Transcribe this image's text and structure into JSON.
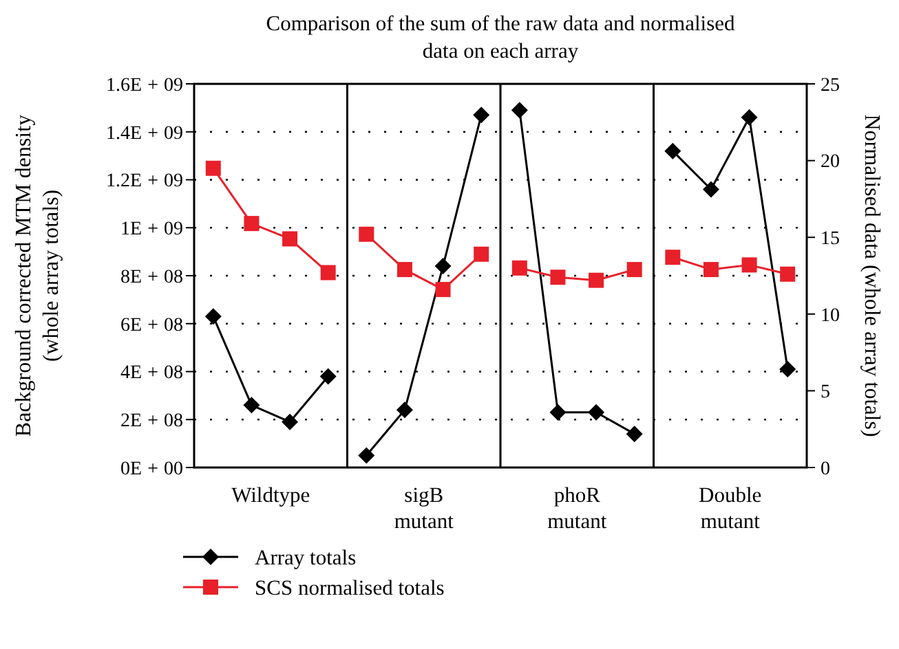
{
  "chart_data": {
    "type": "line",
    "title": "Comparison of the sum of the raw data and normalised data on each array",
    "ylabel": "Background corrected MTM density (whole array totals)",
    "y2label": "Normalised data (whole array totals)",
    "categories": [
      null,
      null,
      null,
      null,
      null,
      null,
      null,
      null,
      null,
      null,
      null,
      null,
      null,
      null,
      null,
      null
    ],
    "ylim": [
      0,
      1600000000
    ],
    "yticks": [
      {
        "value": 0,
        "label": "0E+00"
      },
      {
        "value": 200000000,
        "label": "2E+08"
      },
      {
        "value": 400000000,
        "label": "4E+08"
      },
      {
        "value": 600000000,
        "label": "6E+08"
      },
      {
        "value": 800000000,
        "label": "8E+08"
      },
      {
        "value": 1000000000,
        "label": "1E+09"
      },
      {
        "value": 1200000000,
        "label": "1.2E+09"
      },
      {
        "value": 1400000000,
        "label": "1.4E+09"
      },
      {
        "value": 1600000000,
        "label": "1.6E+09"
      }
    ],
    "y2lim": [
      0,
      25
    ],
    "y2ticks": [
      0,
      5,
      10,
      15,
      20,
      25
    ],
    "series": [
      {
        "name": "Array totals",
        "color": "#000000",
        "marker": "diamond",
        "values": [
          630000000,
          260000000,
          190000000,
          380000000,
          null,
          null,
          null,
          null,
          null,
          null,
          null,
          null,
          null,
          null,
          null,
          null
        ]
      },
      {
        "color": "#000000",
        "marker": "diamond",
        "values": [
          null,
          null,
          null,
          null,
          50000000,
          240000000,
          840000000,
          1470000000,
          null,
          null,
          null,
          null,
          null,
          null,
          null,
          null
        ]
      },
      {
        "color": "#000000",
        "marker": "diamond",
        "values": [
          null,
          null,
          null,
          null,
          null,
          null,
          null,
          null,
          1490000000,
          230000000,
          230000000,
          140000000,
          null,
          null,
          null,
          null
        ]
      },
      {
        "color": "#000000",
        "marker": "diamond",
        "values": [
          null,
          null,
          null,
          null,
          null,
          null,
          null,
          null,
          null,
          null,
          null,
          null,
          1320000000,
          1160000000,
          1460000000,
          410000000
        ]
      },
      {
        "name": "SCS normalised totals",
        "color": "#e8202a",
        "marker": "square",
        "axis": "y2",
        "values": [
          19.5,
          15.9,
          14.9,
          12.7,
          null,
          null,
          null,
          null,
          null,
          null,
          null,
          null,
          null,
          null,
          null,
          null
        ]
      },
      {
        "color": "#e8202a",
        "marker": "square",
        "axis": "y2",
        "values": [
          null,
          null,
          null,
          null,
          15.2,
          12.9,
          11.6,
          13.9,
          null,
          null,
          null,
          null,
          null,
          null,
          null,
          null
        ]
      },
      {
        "color": "#e8202a",
        "marker": "square",
        "axis": "y2",
        "values": [
          null,
          null,
          null,
          null,
          null,
          null,
          null,
          null,
          13.0,
          12.4,
          12.2,
          12.9,
          null,
          null,
          null,
          null
        ]
      },
      {
        "color": "#e8202a",
        "marker": "square",
        "axis": "y2",
        "values": [
          null,
          null,
          null,
          null,
          null,
          null,
          null,
          null,
          null,
          null,
          null,
          null,
          13.7,
          12.9,
          13.2,
          12.6
        ]
      }
    ],
    "annotations": [
      "Wildtype",
      "sigB mutant",
      "phoR mutant",
      "Double mutant"
    ],
    "grid": "y",
    "legend": "bottom",
    "line_style": "solid"
  }
}
